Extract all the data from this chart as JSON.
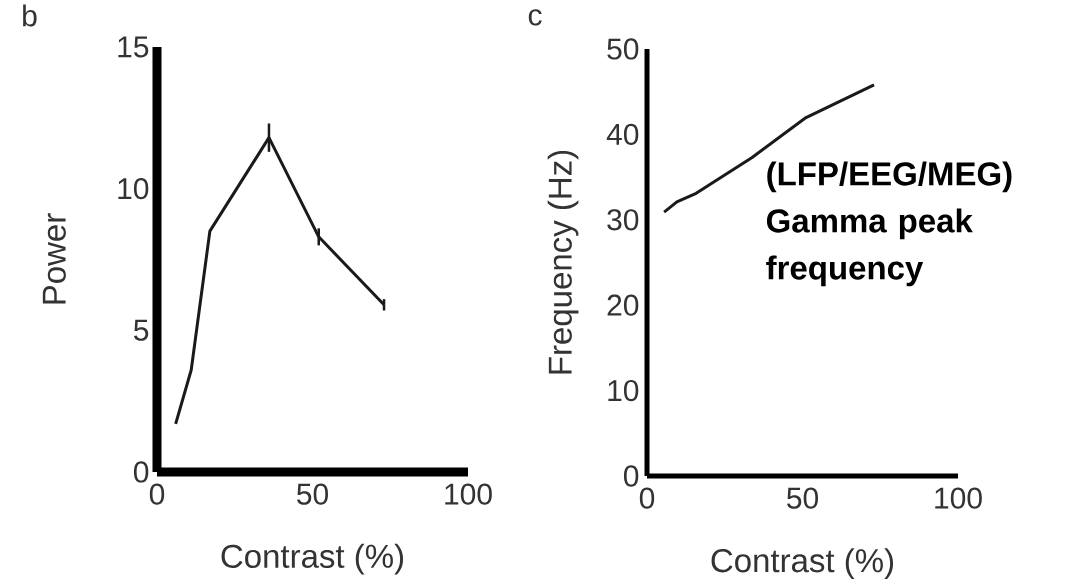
{
  "chart_data": [
    {
      "type": "line",
      "title": "b",
      "xlabel": "Contrast (%)",
      "ylabel": "Power",
      "x": [
        6,
        11,
        17,
        36,
        52,
        73
      ],
      "values": [
        1.7,
        3.6,
        8.5,
        11.8,
        8.3,
        5.9
      ],
      "errors": [
        null,
        null,
        null,
        0.5,
        0.3,
        0.2
      ],
      "color": "#1a1a1a",
      "xlim": [
        0,
        100
      ],
      "ylim": [
        0,
        15
      ],
      "xticks": [
        0,
        50,
        100
      ],
      "yticks": [
        0,
        5,
        10,
        15
      ],
      "grid": false
    },
    {
      "type": "line",
      "title": "c",
      "xlabel": "Contrast (%)",
      "ylabel": "Frequency (Hz)",
      "x": [
        5.5,
        9.6,
        15.8,
        33.8,
        50.8,
        73
      ],
      "values": [
        30.9,
        32.1,
        33.1,
        37.3,
        41.9,
        45.8
      ],
      "color": "#1a1a1a",
      "xlim": [
        0,
        100
      ],
      "ylim": [
        0,
        50
      ],
      "xticks": [
        0,
        50,
        100
      ],
      "yticks": [
        0,
        10,
        20,
        30,
        40,
        50
      ],
      "grid": false,
      "annotations": [
        "(LFP/EEG/MEG) Gamma peak frequency"
      ]
    }
  ]
}
